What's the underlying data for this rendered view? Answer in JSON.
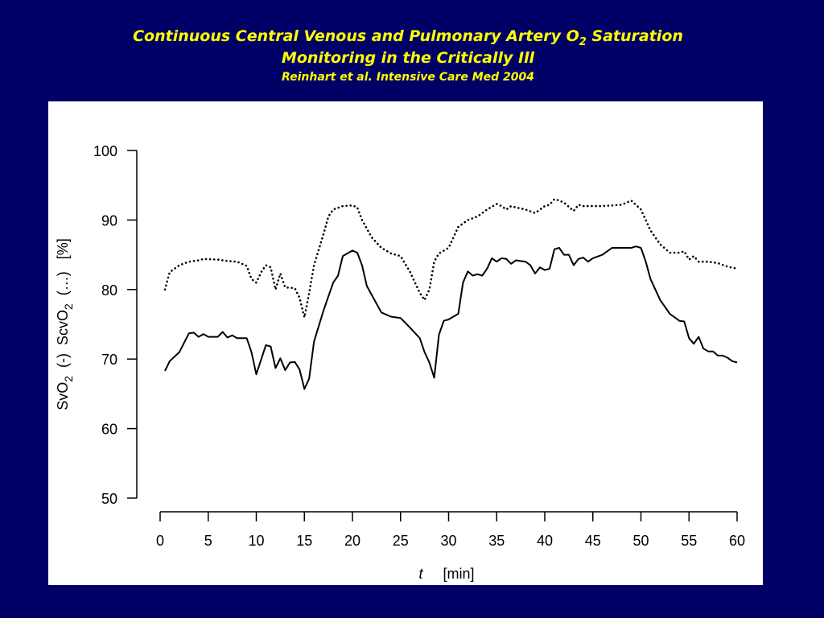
{
  "chart_data": {
    "type": "line",
    "title_parts": [
      "Continuous Central Venous and Pulmonary Artery O",
      "2",
      " Saturation",
      "Monitoring in the Critically Ill"
    ],
    "subtitle": "Reinhart et al. Intensive Care Med 2004",
    "ylabel_parts": [
      "SvO",
      "2",
      "  (-)  ScvO",
      "2",
      "  (…)   [%]"
    ],
    "xlabel_parts": [
      "t",
      "[min]"
    ],
    "xlim": [
      0,
      60
    ],
    "xticks": [
      0,
      5,
      10,
      15,
      20,
      25,
      30,
      35,
      40,
      45,
      50,
      55,
      60
    ],
    "ylim": [
      50,
      100
    ],
    "yticks": [
      50,
      60,
      70,
      80,
      90,
      100
    ],
    "series": [
      {
        "color": "#000000",
        "style": "solid",
        "x": [
          0.5,
          1,
          2,
          3,
          3.5,
          4,
          4.5,
          5,
          6,
          6.5,
          7,
          7.5,
          8,
          9,
          9.5,
          10,
          11,
          11.5,
          12,
          12.5,
          13,
          13.5,
          14,
          14.5,
          15,
          15.5,
          16,
          17,
          18,
          18.5,
          19,
          20,
          20.5,
          21,
          21.5,
          23,
          24,
          25,
          26,
          27,
          27.5,
          28,
          28.5,
          29,
          29.5,
          30,
          31,
          31.5,
          32,
          32.5,
          33,
          33.5,
          34,
          34.5,
          35,
          35.5,
          36,
          36.5,
          37,
          38,
          38.5,
          39,
          39.5,
          40,
          40.5,
          41,
          41.5,
          42,
          42.5,
          43,
          43.5,
          44,
          44.5,
          45,
          46,
          47,
          48,
          49,
          49.5,
          50,
          50.5,
          51,
          52,
          53,
          54,
          54.5,
          55,
          55.5,
          56,
          56.5,
          57,
          57.5,
          58,
          58.5,
          59,
          59.5,
          60
        ],
        "values": [
          68.3,
          69.7,
          71,
          73.7,
          73.8,
          73.2,
          73.6,
          73.2,
          73.2,
          73.9,
          73.1,
          73.4,
          73,
          73,
          71,
          67.8,
          72,
          71.8,
          68.7,
          70.1,
          68.4,
          69.5,
          69.6,
          68.5,
          65.7,
          67.2,
          72.5,
          77,
          81,
          82,
          84.8,
          85.6,
          85.3,
          83.5,
          80.5,
          76.7,
          76.1,
          75.9,
          74.5,
          73,
          71,
          69.5,
          67.3,
          73.5,
          75.5,
          75.7,
          76.5,
          81,
          82.6,
          82,
          82.2,
          82,
          83,
          84.5,
          84,
          84.5,
          84.4,
          83.7,
          84.2,
          84,
          83.5,
          82.3,
          83.2,
          82.8,
          83,
          85.8,
          86,
          85,
          85,
          83.5,
          84.4,
          84.6,
          84,
          84.5,
          85,
          86,
          86,
          86,
          86.2,
          86,
          84,
          81.5,
          78.5,
          76.5,
          75.5,
          75.4,
          73,
          72.2,
          73.2,
          71.5,
          71.1,
          71.1,
          70.5,
          70.5,
          70.2,
          69.7,
          69.5
        ]
      },
      {
        "color": "#000000",
        "style": "dotted",
        "x": [
          0.5,
          1,
          2,
          3,
          4,
          4.5,
          6,
          7,
          8,
          9,
          9.5,
          10,
          10.5,
          11,
          11.5,
          12,
          12.5,
          13,
          14,
          14.5,
          15,
          15.5,
          16,
          17,
          17.5,
          18,
          19,
          20,
          20.5,
          21,
          22,
          23,
          24,
          25,
          26,
          27,
          27.5,
          28,
          28.5,
          29,
          30,
          31,
          32,
          33,
          34,
          35,
          35.5,
          36,
          36.5,
          37,
          38,
          39,
          40,
          40.5,
          41,
          41.5,
          42,
          43,
          43.5,
          44,
          45,
          46,
          47,
          48,
          49,
          50,
          51,
          52,
          53,
          54,
          54.5,
          55,
          55.5,
          56,
          57,
          58,
          59,
          60
        ],
        "values": [
          80,
          82.5,
          83.5,
          84,
          84.2,
          84.4,
          84.3,
          84.1,
          84,
          83.4,
          81.5,
          81,
          82.5,
          83.5,
          83.2,
          80,
          82.3,
          80.3,
          80.2,
          78.8,
          76,
          79.5,
          83.5,
          88,
          90.5,
          91.5,
          92,
          92.1,
          91.8,
          90,
          87.5,
          86,
          85.2,
          84.8,
          82.5,
          79.5,
          78.5,
          80,
          84,
          85.2,
          86,
          89,
          90,
          90.5,
          91.5,
          92.3,
          92,
          91.5,
          92,
          91.8,
          91.5,
          91,
          92,
          92.2,
          93,
          92.8,
          92.5,
          91.3,
          92.2,
          92,
          92,
          92,
          92.1,
          92.2,
          92.8,
          91.5,
          88.5,
          86.5,
          85.3,
          85.3,
          85.5,
          84.3,
          84.8,
          84,
          84,
          83.8,
          83.3,
          83
        ]
      }
    ]
  }
}
